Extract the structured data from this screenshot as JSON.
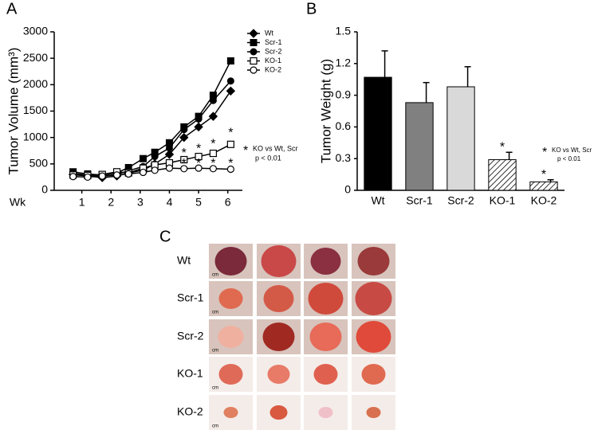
{
  "chart_data": [
    {
      "type": "line",
      "panel_label": "A",
      "ylabel": "Tumor Volume (mm³)",
      "xlabel": "Wk",
      "x": [
        0.7,
        1.2,
        1.7,
        2.2,
        2.6,
        3.1,
        3.5,
        4.0,
        4.5,
        5.0,
        5.5,
        6.1
      ],
      "xlim": [
        0,
        6.5
      ],
      "xticks": [
        1,
        2,
        3,
        4,
        5,
        6
      ],
      "ylim": [
        0,
        3000
      ],
      "yticks": [
        0,
        500,
        1000,
        1500,
        2000,
        2500,
        3000
      ],
      "series": [
        {
          "name": "Wt",
          "color": "#000000",
          "marker": "diamond",
          "values": [
            300,
            270,
            240,
            270,
            330,
            380,
            500,
            680,
            1000,
            1200,
            1400,
            1880
          ]
        },
        {
          "name": "Scr-1",
          "color": "#000000",
          "marker": "square",
          "values": [
            350,
            310,
            290,
            330,
            430,
            600,
            720,
            900,
            1200,
            1400,
            1800,
            2450
          ]
        },
        {
          "name": "Scr-2",
          "color": "#000000",
          "marker": "circle",
          "values": [
            320,
            290,
            270,
            300,
            370,
            450,
            640,
            800,
            1150,
            1350,
            1700,
            2070
          ]
        },
        {
          "name": "KO-1",
          "color": "#000000",
          "marker": "open-square",
          "values": [
            290,
            280,
            300,
            350,
            330,
            420,
            480,
            520,
            580,
            640,
            700,
            870
          ]
        },
        {
          "name": "KO-2",
          "color": "#000000",
          "marker": "open-circle",
          "values": [
            260,
            250,
            270,
            290,
            310,
            340,
            380,
            420,
            410,
            420,
            410,
            400
          ]
        }
      ],
      "annotations": [
        {
          "text": "*",
          "x": 4.5,
          "y": 700
        },
        {
          "text": "*",
          "x": 5.0,
          "y": 780
        },
        {
          "text": "*",
          "x": 5.5,
          "y": 870
        },
        {
          "text": "*",
          "x": 6.1,
          "y": 1080
        },
        {
          "text": "*",
          "x": 4.5,
          "y": 500
        },
        {
          "text": "*",
          "x": 5.0,
          "y": 500
        },
        {
          "text": "*",
          "x": 5.5,
          "y": 500
        },
        {
          "text": "*",
          "x": 6.1,
          "y": 500
        }
      ],
      "note": {
        "marker": "*",
        "lines": [
          "KO vs Wt, Scr",
          "p < 0.01"
        ]
      }
    },
    {
      "type": "bar",
      "panel_label": "B",
      "ylabel": "Tumor Weight (g)",
      "categories": [
        "Wt",
        "Scr-1",
        "Scr-2",
        "KO-1",
        "KO-2"
      ],
      "values": [
        1.07,
        0.83,
        0.98,
        0.29,
        0.08
      ],
      "errors": [
        0.25,
        0.19,
        0.19,
        0.07,
        0.02
      ],
      "colors": [
        "#000000",
        "#808080",
        "#d9d9d9",
        "#ffffff",
        "#ffffff"
      ],
      "hatch": [
        false,
        false,
        false,
        true,
        true
      ],
      "ylim": [
        0,
        1.5
      ],
      "yticks": [
        0,
        0.3,
        0.6,
        0.9,
        1.2,
        1.5
      ],
      "annotations": [
        {
          "text": "*",
          "category": 3
        },
        {
          "text": "*",
          "category": 4
        }
      ],
      "note": {
        "marker": "*",
        "lines": [
          "KO vs Wt, Scr",
          "p < 0.01"
        ]
      }
    }
  ],
  "panel_c": {
    "label": "C",
    "rows": [
      "Wt",
      "Scr-1",
      "Scr-2",
      "KO-1",
      "KO-2"
    ],
    "scale_label": "cm"
  }
}
